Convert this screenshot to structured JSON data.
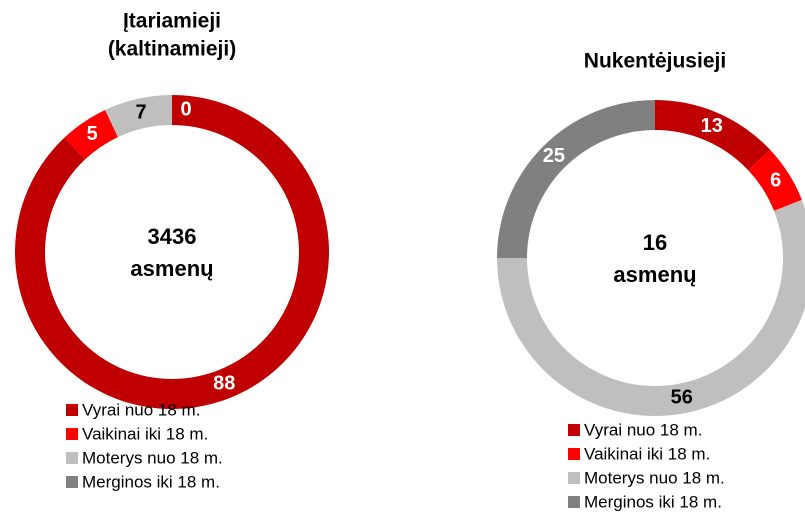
{
  "chart_data": [
    {
      "type": "pie",
      "donut": true,
      "title": [
        "Įtariamieji",
        "(kaltinamieji)"
      ],
      "center_text": [
        "3436",
        "asmenų"
      ],
      "categories": [
        "Vyrai nuo 18 m.",
        "Vaikinai iki 18 m.",
        "Moterys nuo 18 m.",
        "Merginos iki 18 m."
      ],
      "values": [
        88,
        5,
        7,
        0
      ],
      "colors": [
        "#c00000",
        "#ff0000",
        "#bfbfbf",
        "#808080"
      ],
      "label_colors": [
        "#ffffff",
        "#ffffff",
        "#000000",
        "#ffffff"
      ],
      "legend": "bottom"
    },
    {
      "type": "pie",
      "donut": true,
      "title": [
        "Nukentėjusieji"
      ],
      "center_text": [
        "16",
        "asmenų"
      ],
      "categories": [
        "Vyrai nuo 18 m.",
        "Vaikinai iki 18 m.",
        "Moterys nuo 18 m.",
        "Merginos iki 18 m."
      ],
      "values": [
        13,
        6,
        56,
        25
      ],
      "colors": [
        "#c00000",
        "#ff0000",
        "#bfbfbf",
        "#808080"
      ],
      "label_colors": [
        "#ffffff",
        "#ffffff",
        "#000000",
        "#ffffff"
      ],
      "legend": "bottom"
    }
  ]
}
